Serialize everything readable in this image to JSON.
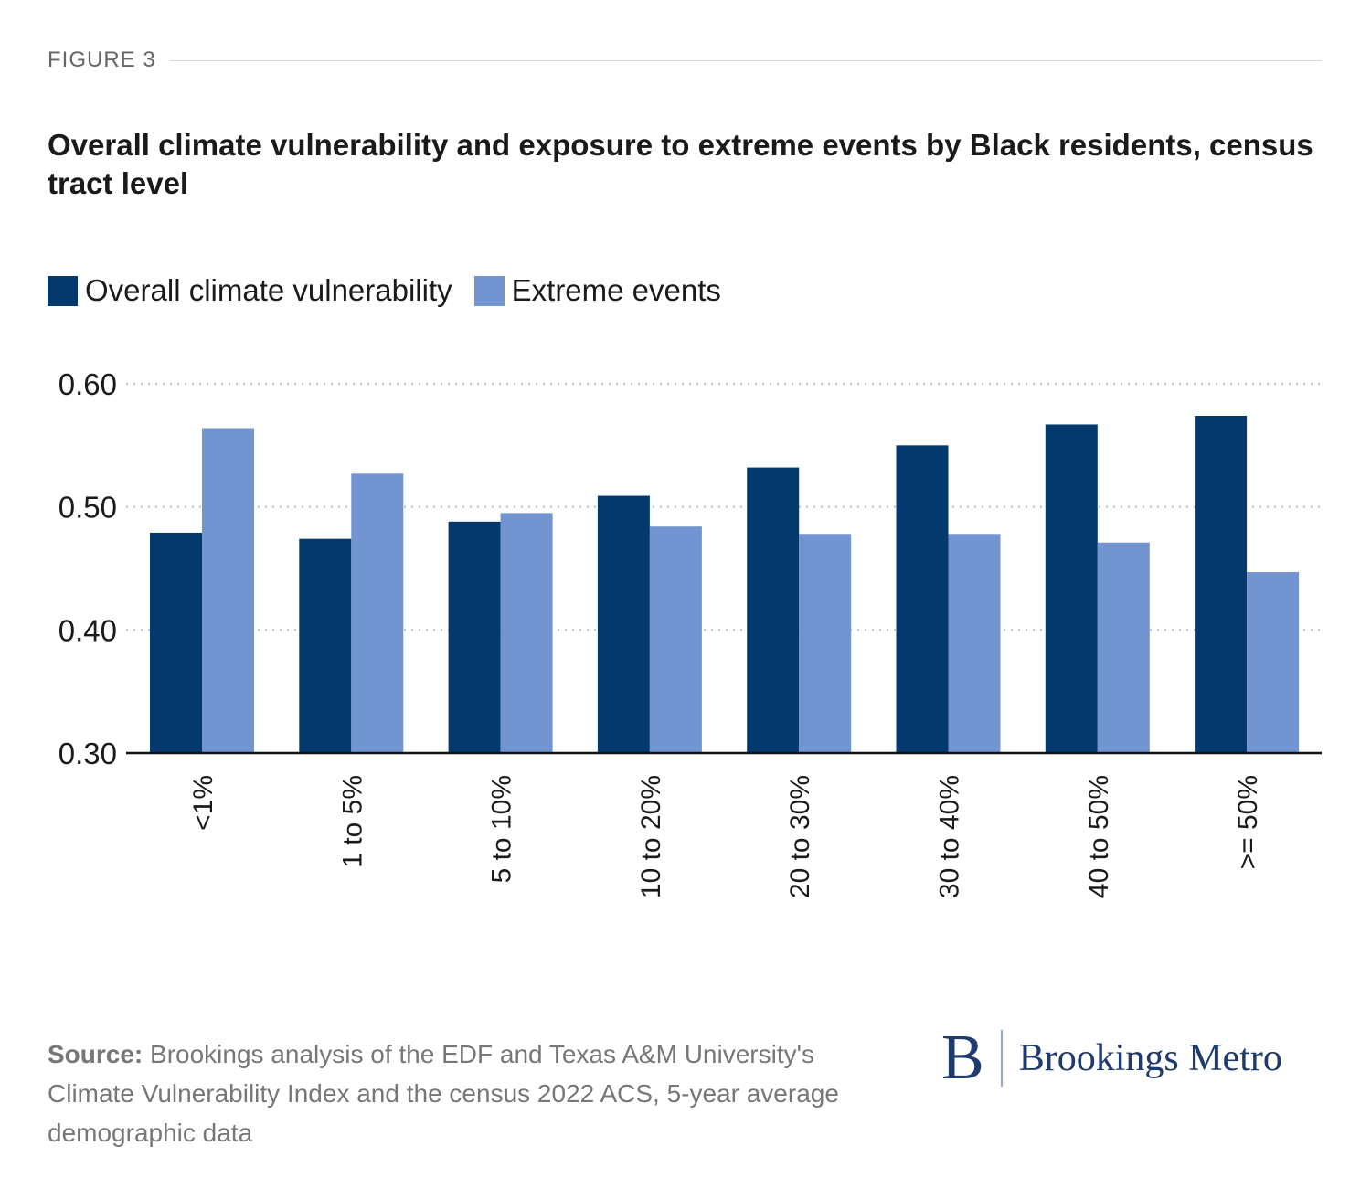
{
  "figure_label": "FIGURE 3",
  "title": "Overall climate vulnerability and exposure to extreme events by Black residents, census tract level",
  "source_label": "Source:",
  "source_text": " Brookings analysis of the EDF and Texas A&M University's Climate Vulnerability Index and the census 2022 ACS, 5-year average demographic data",
  "logo": {
    "mark": "B",
    "text": "Brookings Metro"
  },
  "colors": {
    "overall": "#03396c",
    "extreme": "#7294d0",
    "grid": "#bbbbbb",
    "axis": "#111111"
  },
  "chart_data": {
    "type": "bar",
    "title": "Overall climate vulnerability and exposure to extreme events by Black residents, census tract level",
    "xlabel": "",
    "ylabel": "",
    "ylim": [
      0.3,
      0.6
    ],
    "yticks": [
      "0.30",
      "0.40",
      "0.50",
      "0.60"
    ],
    "ytick_values": [
      0.3,
      0.4,
      0.5,
      0.6
    ],
    "grid": true,
    "legend_position": "top-left",
    "categories": [
      "<1%",
      "1 to 5%",
      "5 to 10%",
      "10 to 20%",
      "20 to 30%",
      "30 to 40%",
      "40 to 50%",
      ">= 50%"
    ],
    "series": [
      {
        "name": "Overall climate vulnerability",
        "values": [
          0.479,
          0.474,
          0.488,
          0.509,
          0.532,
          0.55,
          0.567,
          0.574
        ]
      },
      {
        "name": "Extreme events",
        "values": [
          0.564,
          0.527,
          0.495,
          0.484,
          0.478,
          0.478,
          0.471,
          0.447
        ]
      }
    ]
  }
}
